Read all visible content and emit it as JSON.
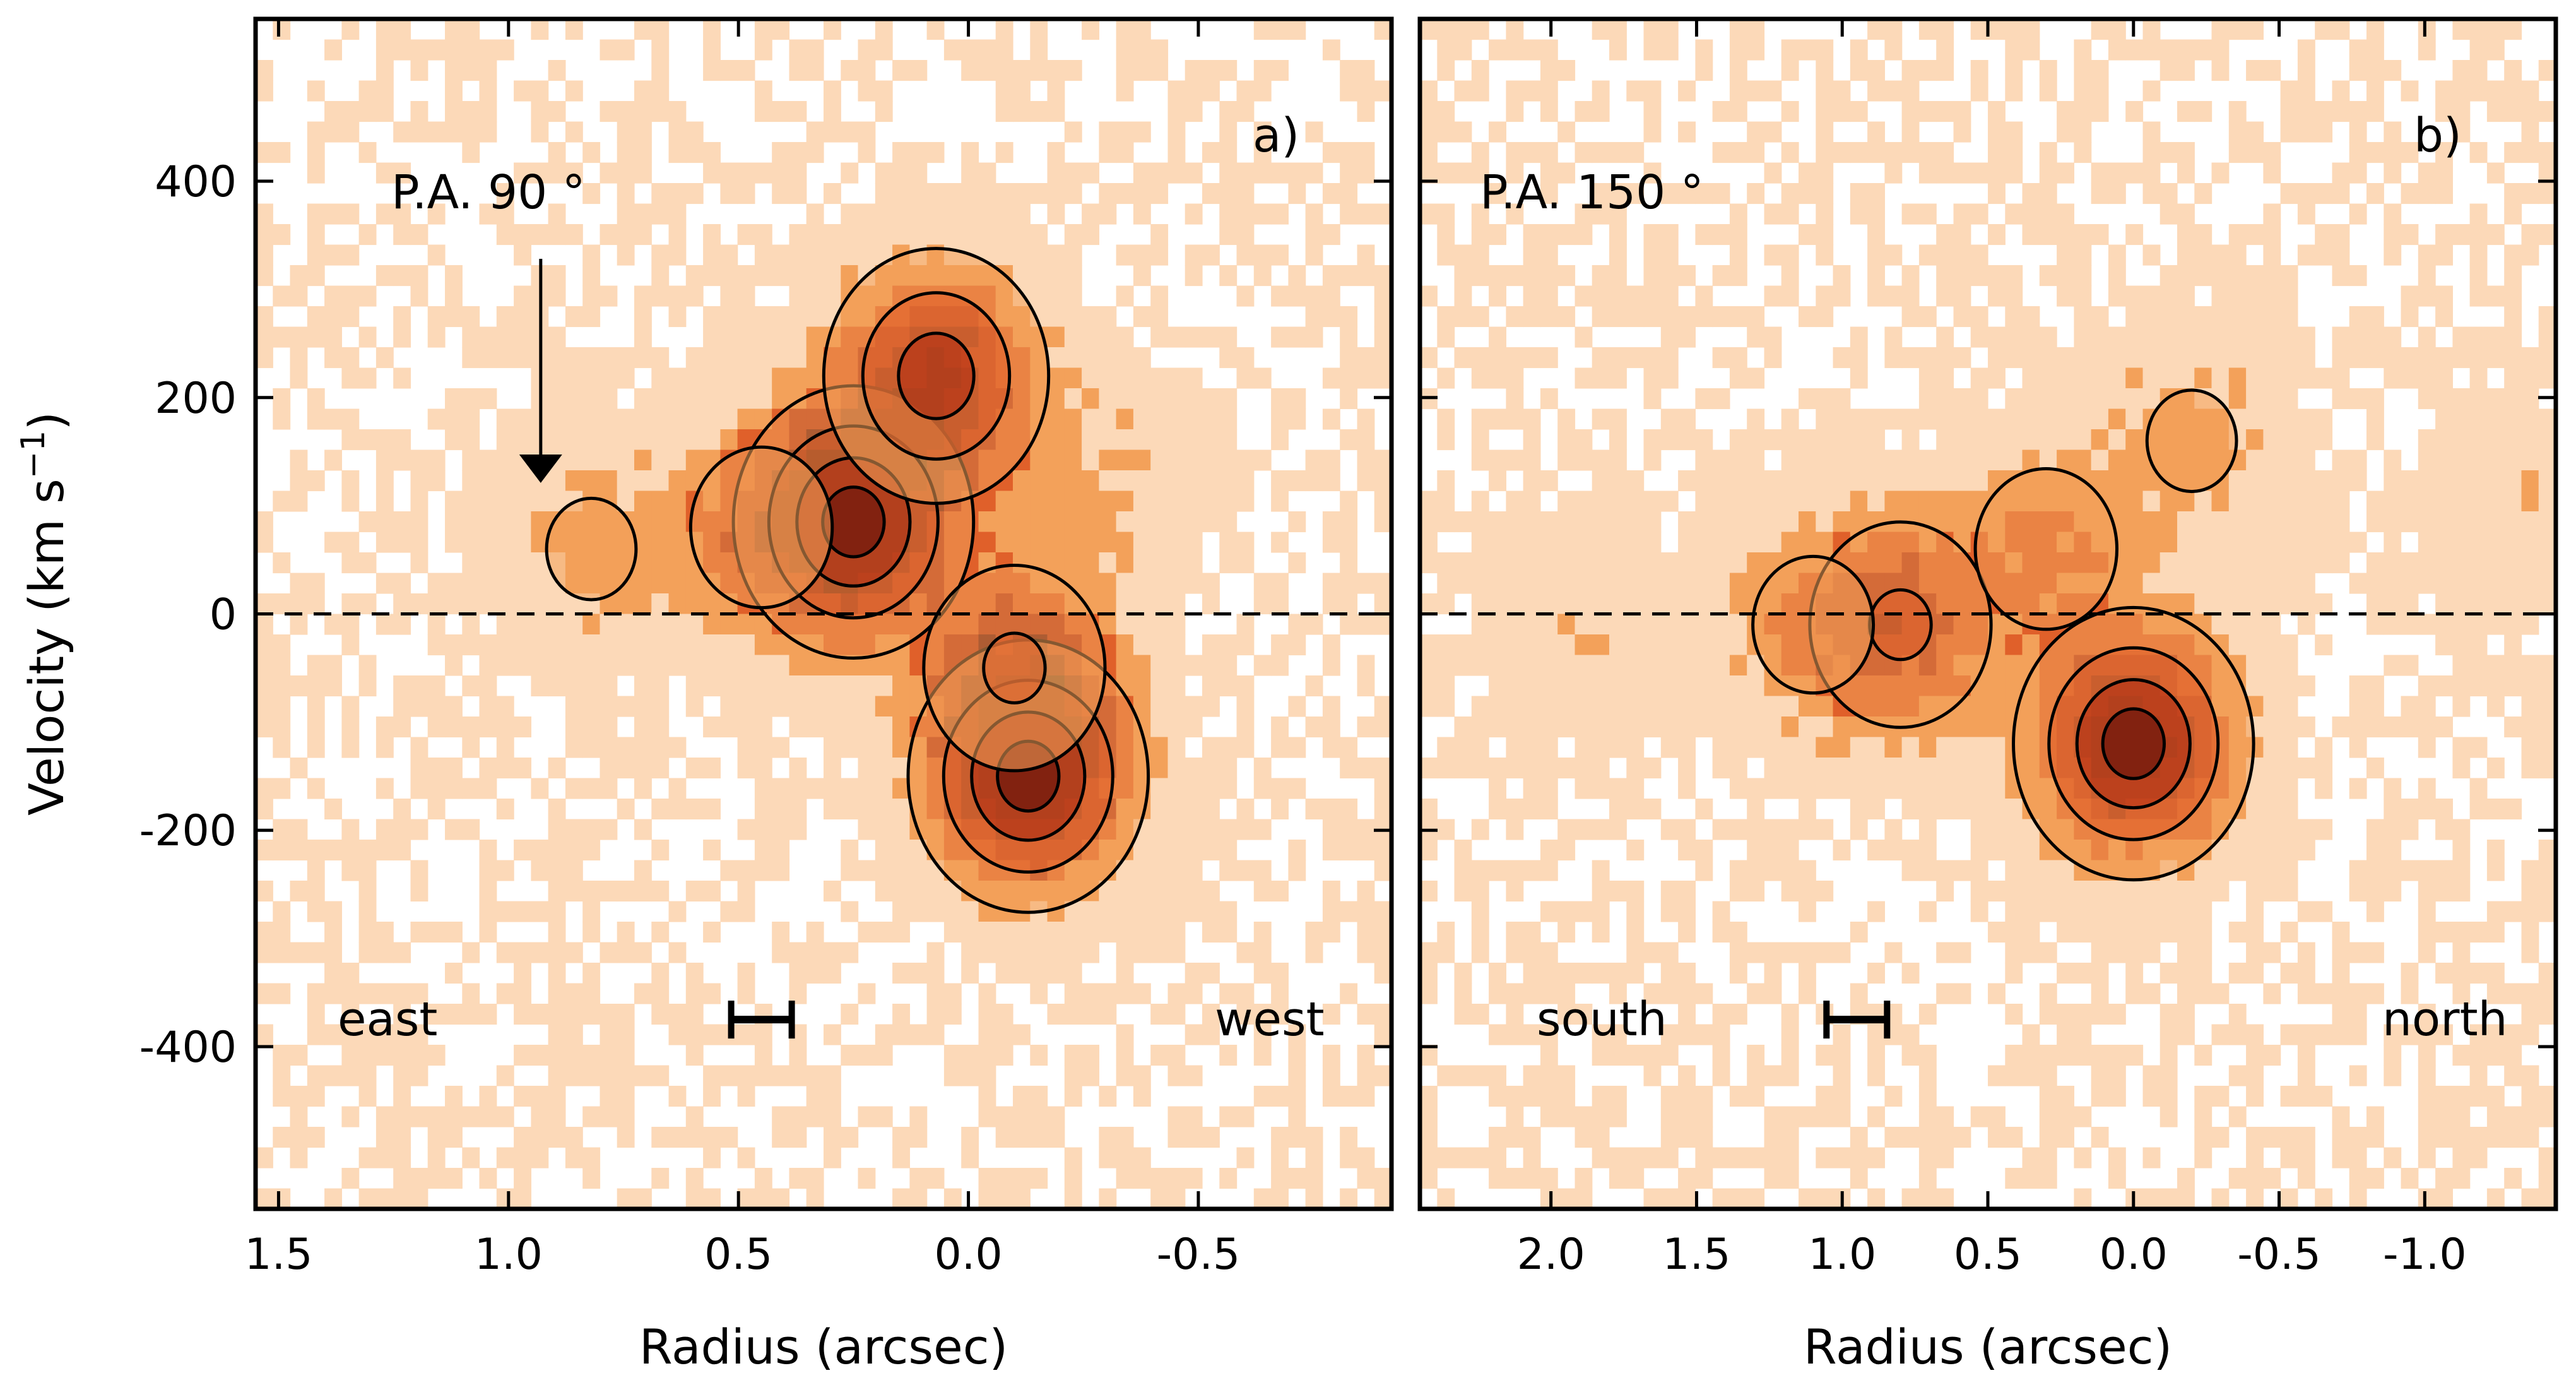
{
  "figure": {
    "ylabel": "Velocity (km s",
    "ylabel_sup": "−1",
    "ylabel_close": ")"
  },
  "chart_data": [
    {
      "type": "heatmap",
      "panel_label": "a)",
      "position_angle": "P.A. 90 °",
      "left_direction": "east",
      "right_direction": "west",
      "xlabel": "Radius (arcsec)",
      "xlim": [
        1.55,
        -0.92
      ],
      "ylim": [
        -550,
        550
      ],
      "xticks": [
        1.5,
        1.0,
        0.5,
        0.0,
        -0.5
      ],
      "xtick_labels": [
        "1.5",
        "1.0",
        "0.5",
        "0.0",
        "-0.5"
      ],
      "yticks": [
        400,
        200,
        0,
        -200,
        -400
      ],
      "ytick_labels": [
        "400",
        "200",
        "0",
        "-200",
        "-400"
      ],
      "zero_line": 0,
      "arrow_at_radius": 0.93,
      "resolution_bar_center": 0.45,
      "colormap": [
        "#ffffff",
        "#fcd9b8",
        "#f3a15a",
        "#e0602a",
        "#b02a10",
        "#5a0a05",
        "#000000"
      ],
      "emission_blobs": [
        {
          "x": 0.25,
          "y": 85,
          "peak": 1.0
        },
        {
          "x": 0.07,
          "y": 220,
          "peak": 0.82
        },
        {
          "x": -0.13,
          "y": -150,
          "peak": 1.0
        },
        {
          "x": -0.1,
          "y": -50,
          "peak": 0.5
        },
        {
          "x": 0.45,
          "y": 80,
          "peak": 0.35
        },
        {
          "x": 0.82,
          "y": 60,
          "peak": 0.25
        },
        {
          "x": -0.28,
          "y": 120,
          "peak": 0.2
        }
      ]
    },
    {
      "type": "heatmap",
      "panel_label": "b)",
      "position_angle": "P.A. 150 °",
      "left_direction": "south",
      "right_direction": "north",
      "xlabel": "Radius (arcsec)",
      "xlim": [
        2.45,
        -1.45
      ],
      "ylim": [
        -550,
        550
      ],
      "xticks": [
        2.0,
        1.5,
        1.0,
        0.5,
        0.0,
        -0.5,
        -1.0
      ],
      "xtick_labels": [
        "2.0",
        "1.5",
        "1.0",
        "0.5",
        "0.0",
        "-0.5",
        "-1.0"
      ],
      "yticks": [
        400,
        200,
        0,
        -200,
        -400
      ],
      "zero_line": 0,
      "resolution_bar_center": 0.95,
      "colormap": [
        "#ffffff",
        "#fcd9b8",
        "#f3a15a",
        "#e0602a",
        "#b02a10",
        "#5a0a05",
        "#000000"
      ],
      "emission_blobs": [
        {
          "x": 0.0,
          "y": -120,
          "peak": 1.0
        },
        {
          "x": 0.8,
          "y": -10,
          "peak": 0.5
        },
        {
          "x": 1.1,
          "y": -10,
          "peak": 0.3
        },
        {
          "x": 0.3,
          "y": 60,
          "peak": 0.35
        },
        {
          "x": -0.2,
          "y": 160,
          "peak": 0.25
        },
        {
          "x": 1.9,
          "y": -10,
          "peak": 0.15
        },
        {
          "x": -1.3,
          "y": 100,
          "peak": 0.15
        }
      ]
    }
  ]
}
